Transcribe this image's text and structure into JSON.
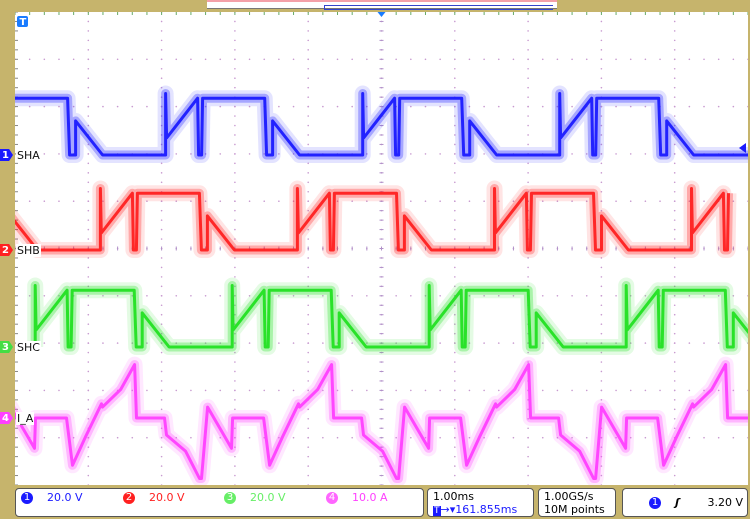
{
  "chart_data": {
    "type": "line",
    "title": "",
    "xlabel": "",
    "ylabel": "",
    "time_units": "ms (relative to screen center)",
    "xlim": [
      -5,
      5
    ],
    "grid": true,
    "divisions": {
      "horizontal": 10,
      "vertical": 10
    },
    "period_ms": 2.688,
    "phase_template": {
      "t": [
        0,
        0.846,
        0.873,
        0.955,
        0.955,
        1.323,
        2.183,
        2.183,
        2.196,
        2.619,
        2.633,
        2.674,
        2.688
      ],
      "v": [
        24,
        24,
        0,
        0,
        14.4,
        0,
        0,
        26,
        7.2,
        24,
        0,
        0,
        24
      ]
    },
    "current_template": {
      "t": [
        0,
        0.423,
        0.505,
        0.682,
        0.9,
        0.914,
        1.16,
        1.351,
        1.378,
        1.76,
        1.787,
        2.046,
        2.237,
        2.265,
        2.347,
        2.674,
        2.688
      ],
      "i": [
        0,
        0,
        -10,
        -4,
        3,
        2.3,
        6,
        11.3,
        0,
        0,
        -3.6,
        -7,
        -12.8,
        -12.8,
        2.3,
        -6.4,
        0
      ]
    },
    "series": [
      {
        "name": "SHA",
        "channel": "1",
        "color": "#1a1aff",
        "scale": "20.0 V",
        "start_ms": -2.44,
        "template": "phase_template"
      },
      {
        "name": "SHB",
        "channel": "2",
        "color": "#ff2020",
        "scale": "20.0 V",
        "start_ms": -3.33,
        "template": "phase_template"
      },
      {
        "name": "SHC",
        "channel": "3",
        "color": "#22e022",
        "scale": "20.0 V",
        "start_ms": -4.22,
        "template": "phase_template"
      },
      {
        "name": "I_A",
        "channel": "4",
        "color": "#ff40ff",
        "scale": "10.0 A",
        "start_ms": -4.72,
        "template": "current_template"
      }
    ]
  },
  "channels": [
    {
      "num": "1",
      "label": "SHA",
      "scale": "20.0 V",
      "color": "#1a1aff"
    },
    {
      "num": "2",
      "label": "SHB",
      "scale": "20.0 V",
      "color": "#ff2020"
    },
    {
      "num": "3",
      "label": "SHC",
      "scale": "20.0 V",
      "color": "#44dd44"
    },
    {
      "num": "4",
      "label": "I_A",
      "scale": "10.0 A",
      "color": "#ff40ff"
    }
  ],
  "timebase": {
    "per_div": "1.00ms",
    "position": "161.855ms"
  },
  "acquisition": {
    "rate": "1.00GS/s",
    "length": "10M points"
  },
  "trigger": {
    "source": "1",
    "slope_icon": "rising-edge-icon",
    "level": "3.20 V"
  },
  "markers": {
    "trigger": "T"
  }
}
